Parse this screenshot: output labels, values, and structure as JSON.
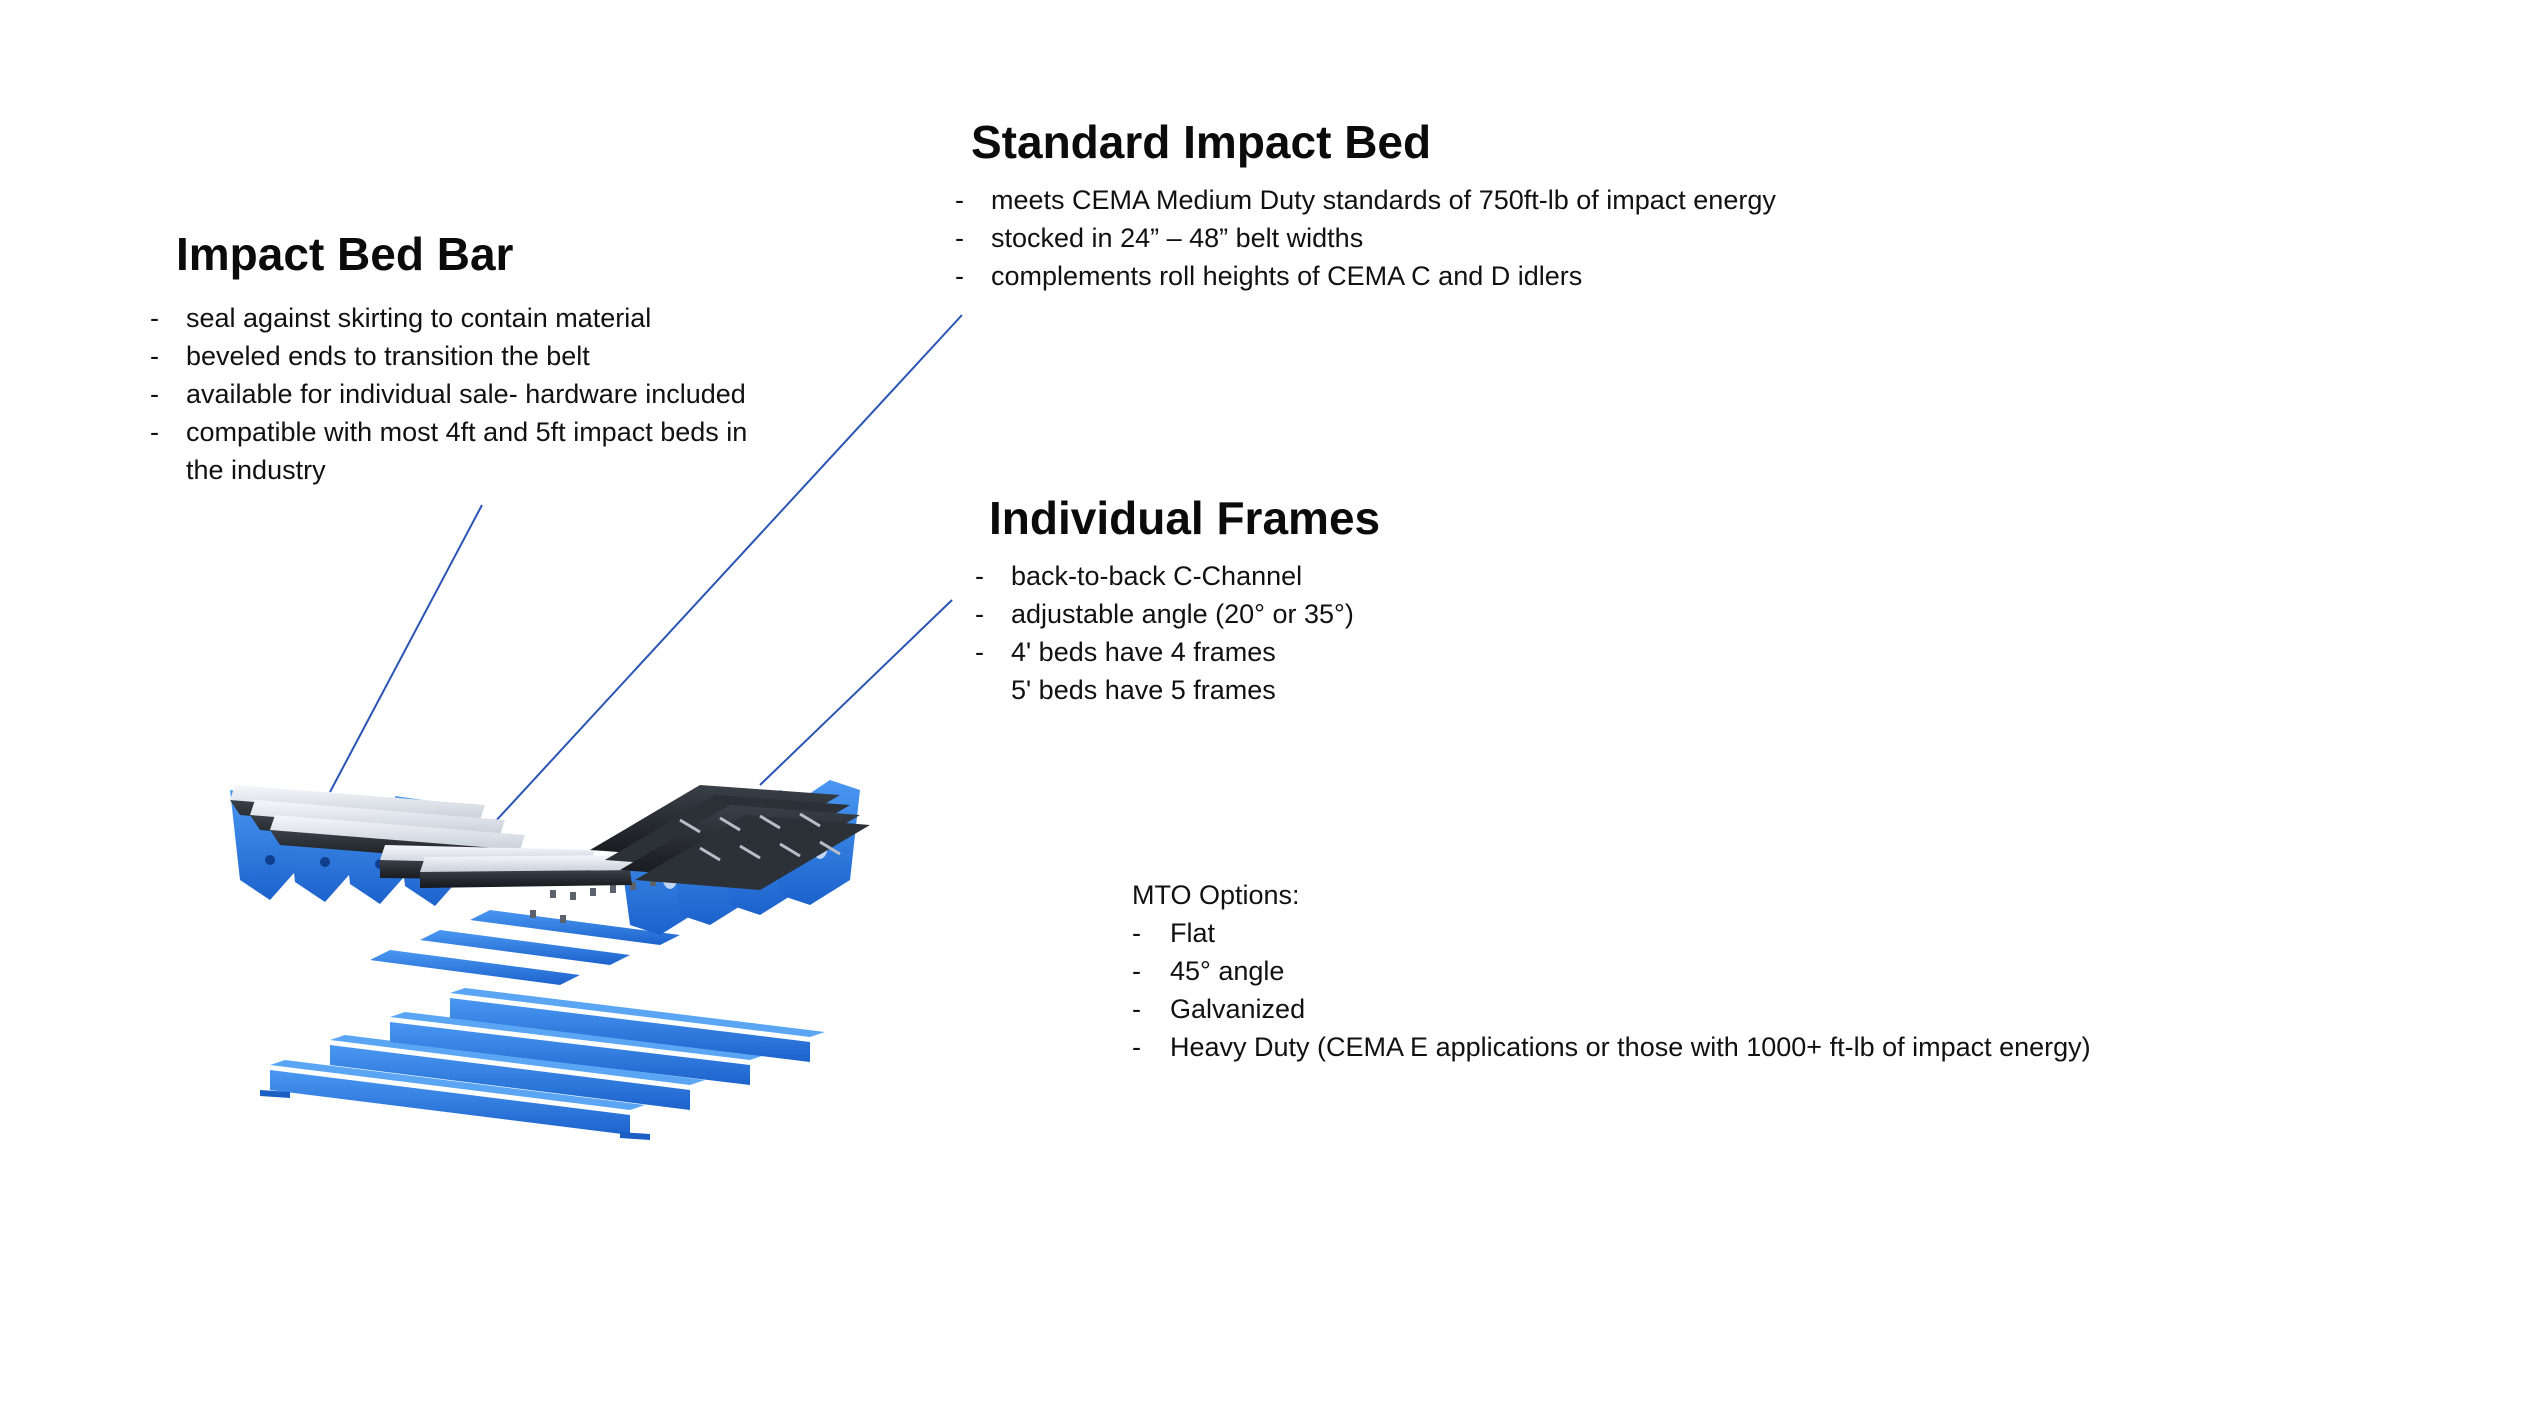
{
  "impact_bed_bar": {
    "title": "Impact Bed Bar",
    "items": [
      "seal against skirting to contain material",
      "beveled ends to transition the belt",
      "available for individual sale- hardware included",
      "compatible with most 4ft and 5ft impact beds in",
      "the industry"
    ]
  },
  "standard_impact_bed": {
    "title": "Standard Impact Bed",
    "items": [
      "meets CEMA Medium Duty standards of 750ft-lb of impact energy",
      "stocked in 24” – 48” belt widths",
      "complements roll heights of CEMA C and D idlers"
    ]
  },
  "individual_frames": {
    "title": "Individual Frames",
    "items": [
      "back-to-back C-Channel",
      "adjustable angle (20° or 35°)",
      "4' beds have 4 frames",
      "5' beds have 5 frames"
    ]
  },
  "mto_options": {
    "title": "MTO Options:",
    "items": [
      "Flat",
      "45° angle",
      "Galvanized",
      "Heavy Duty (CEMA E applications or those with 1000+ ft-lb of impact energy)"
    ]
  },
  "colors": {
    "frame_blue": "#2e7fe6",
    "frame_blue_dark": "#1b5fc4",
    "bar_white": "#e9edf2",
    "bar_rubber": "#22262b",
    "leader_line": "#2b55b5"
  }
}
